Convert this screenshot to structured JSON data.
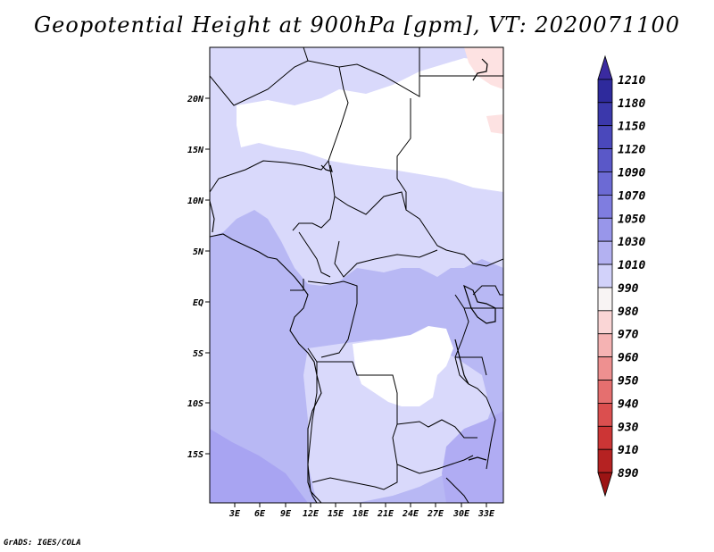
{
  "title": "Geopotential Height at 900hPa [gpm], VT: 2020071100",
  "credit": "GrADS: IGES/COLA",
  "map": {
    "lat_labels": [
      "20N",
      "15N",
      "10N",
      "5N",
      "EQ",
      "5S",
      "10S",
      "15S"
    ],
    "lon_labels": [
      "3E",
      "6E",
      "9E",
      "12E",
      "15E",
      "18E",
      "21E",
      "24E",
      "27E",
      "30E",
      "33E"
    ]
  },
  "colorbar": {
    "levels": [
      "1210",
      "1180",
      "1150",
      "1120",
      "1090",
      "1070",
      "1050",
      "1030",
      "1010",
      "990",
      "980",
      "970",
      "960",
      "950",
      "940",
      "930",
      "910",
      "890"
    ],
    "colors": [
      "#3a2aa0",
      "#2e2a9c",
      "#3b38ab",
      "#4a48bb",
      "#5a58c8",
      "#6c6ad4",
      "#7f7de0",
      "#9896ea",
      "#b3b1f1",
      "#d2d2fa",
      "#f8f4f4",
      "#fad6d6",
      "#f5b3b3",
      "#ee9090",
      "#e56f6f",
      "#db4f4f",
      "#cc3535",
      "#b52222",
      "#9c1414"
    ]
  }
}
